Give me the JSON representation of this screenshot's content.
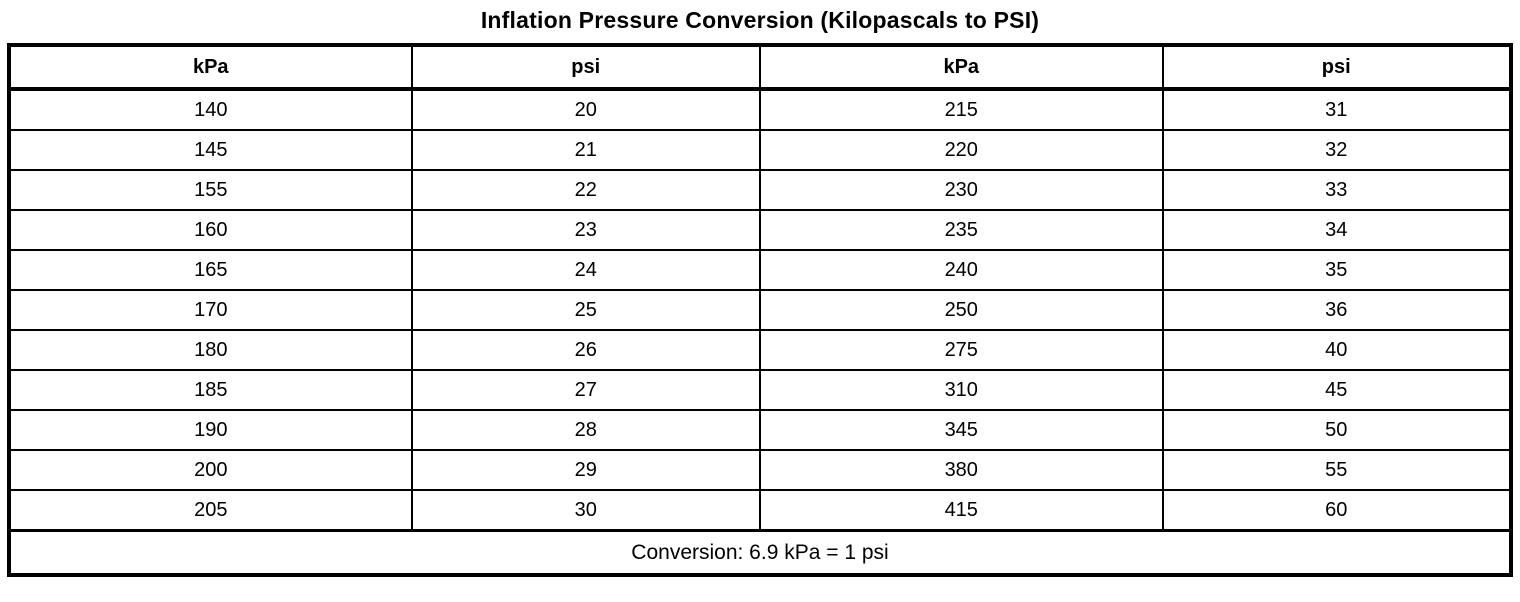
{
  "title": "Inflation Pressure Conversion (Kilopascals to PSI)",
  "table": {
    "columns": [
      "kPa",
      "psi",
      "kPa",
      "psi"
    ],
    "rows": [
      [
        "140",
        "20",
        "215",
        "31"
      ],
      [
        "145",
        "21",
        "220",
        "32"
      ],
      [
        "155",
        "22",
        "230",
        "33"
      ],
      [
        "160",
        "23",
        "235",
        "34"
      ],
      [
        "165",
        "24",
        "240",
        "35"
      ],
      [
        "170",
        "25",
        "250",
        "36"
      ],
      [
        "180",
        "26",
        "275",
        "40"
      ],
      [
        "185",
        "27",
        "310",
        "45"
      ],
      [
        "190",
        "28",
        "345",
        "50"
      ],
      [
        "200",
        "29",
        "380",
        "55"
      ],
      [
        "205",
        "30",
        "415",
        "60"
      ]
    ],
    "footer": "Conversion: 6.9 kPa = 1 psi"
  },
  "colors": {
    "border": "#000000",
    "text": "#000000",
    "background": "#ffffff"
  }
}
